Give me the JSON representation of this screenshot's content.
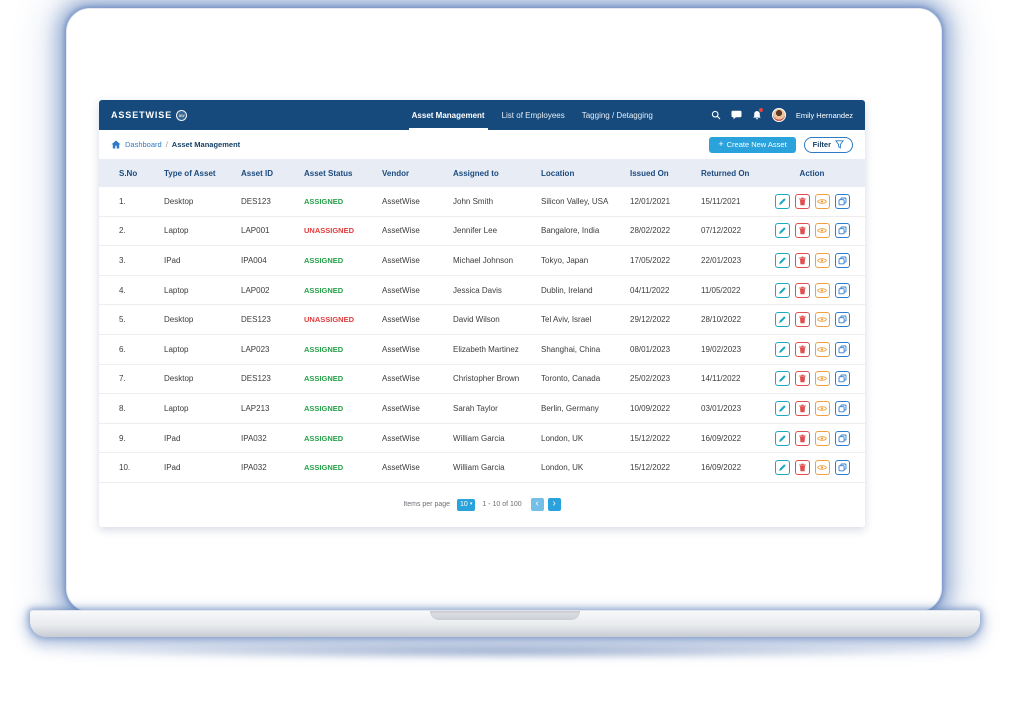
{
  "colors": {
    "navbar_bg": "#164A7D",
    "accent_blue": "#2AA2DB",
    "link_blue": "#2D7BC4",
    "header_bg": "#E8EDF5",
    "header_text": "#1C4A7E",
    "assigned_green": "#27A04A",
    "unassigned_red": "#E03B3B",
    "edit_teal": "#1BA8C4",
    "delete_red": "#E04F4F",
    "view_orange": "#F0A03C",
    "copy_blue": "#2E7DD1"
  },
  "navbar": {
    "brand": "ASSETWISE",
    "brand_badge": "aw",
    "links": [
      {
        "label": "Asset Management",
        "active": true
      },
      {
        "label": "List of Employees",
        "active": false
      },
      {
        "label": "Tagging / Detagging",
        "active": false
      }
    ],
    "user": {
      "name": "Emily Hernandez"
    }
  },
  "breadcrumb": {
    "root": "Dashboard",
    "separator": "/",
    "current": "Asset Management"
  },
  "toolbar": {
    "create_plus": "+",
    "create_label": "Create New Asset",
    "filter_label": "Filter"
  },
  "table": {
    "columns": [
      "S.No",
      "Type of Asset",
      "Asset ID",
      "Asset Status",
      "Vendor",
      "Assigned to",
      "Location",
      "Issued On",
      "Returned On",
      "Action"
    ],
    "actions": [
      {
        "name": "edit",
        "icon": "pencil-icon"
      },
      {
        "name": "delete",
        "icon": "trash-icon"
      },
      {
        "name": "view",
        "icon": "eye-icon"
      },
      {
        "name": "copy",
        "icon": "copy-icon"
      }
    ],
    "rows": [
      {
        "sno": "1.",
        "type": "Desktop",
        "asset_id": "DES123",
        "status": "ASSIGNED",
        "vendor": "AssetWise",
        "assigned_to": "John Smith",
        "location": "Silicon Valley, USA",
        "issued_on": "12/01/2021",
        "returned_on": "15/11/2021"
      },
      {
        "sno": "2.",
        "type": "Laptop",
        "asset_id": "LAP001",
        "status": "UNASSIGNED",
        "vendor": "AssetWise",
        "assigned_to": "Jennifer Lee",
        "location": "Bangalore, India",
        "issued_on": "28/02/2022",
        "returned_on": "07/12/2022"
      },
      {
        "sno": "3.",
        "type": "IPad",
        "asset_id": "IPA004",
        "status": "ASSIGNED",
        "vendor": "AssetWise",
        "assigned_to": "Michael Johnson",
        "location": "Tokyo, Japan",
        "issued_on": "17/05/2022",
        "returned_on": "22/01/2023"
      },
      {
        "sno": "4.",
        "type": "Laptop",
        "asset_id": "LAP002",
        "status": "ASSIGNED",
        "vendor": "AssetWise",
        "assigned_to": "Jessica Davis",
        "location": "Dublin, Ireland",
        "issued_on": "04/11/2022",
        "returned_on": "11/05/2022"
      },
      {
        "sno": "5.",
        "type": "Desktop",
        "asset_id": "DES123",
        "status": "UNASSIGNED",
        "vendor": "AssetWise",
        "assigned_to": "David Wilson",
        "location": "Tel Aviv, Israel",
        "issued_on": "29/12/2022",
        "returned_on": "28/10/2022"
      },
      {
        "sno": "6.",
        "type": "Laptop",
        "asset_id": "LAP023",
        "status": "ASSIGNED",
        "vendor": "AssetWise",
        "assigned_to": "Elizabeth Martinez",
        "location": "Shanghai, China",
        "issued_on": "08/01/2023",
        "returned_on": "19/02/2023"
      },
      {
        "sno": "7.",
        "type": "Desktop",
        "asset_id": "DES123",
        "status": "ASSIGNED",
        "vendor": "AssetWise",
        "assigned_to": "Christopher Brown",
        "location": "Toronto, Canada",
        "issued_on": "25/02/2023",
        "returned_on": "14/11/2022"
      },
      {
        "sno": "8.",
        "type": "Laptop",
        "asset_id": "LAP213",
        "status": "ASSIGNED",
        "vendor": "AssetWise",
        "assigned_to": "Sarah Taylor",
        "location": "Berlin, Germany",
        "issued_on": "10/09/2022",
        "returned_on": "03/01/2023"
      },
      {
        "sno": "9.",
        "type": "IPad",
        "asset_id": "IPA032",
        "status": "ASSIGNED",
        "vendor": "AssetWise",
        "assigned_to": "William Garcia",
        "location": "London, UK",
        "issued_on": "15/12/2022",
        "returned_on": "16/09/2022"
      },
      {
        "sno": "10.",
        "type": "IPad",
        "asset_id": "IPA032",
        "status": "ASSIGNED",
        "vendor": "AssetWise",
        "assigned_to": "William Garcia",
        "location": "London, UK",
        "issued_on": "15/12/2022",
        "returned_on": "16/09/2022"
      }
    ]
  },
  "pagination": {
    "items_per_page_label": "Items per page",
    "page_size": "10",
    "caret": "▾",
    "range": "1 - 10 of 100",
    "prev": "‹",
    "next": "›"
  }
}
